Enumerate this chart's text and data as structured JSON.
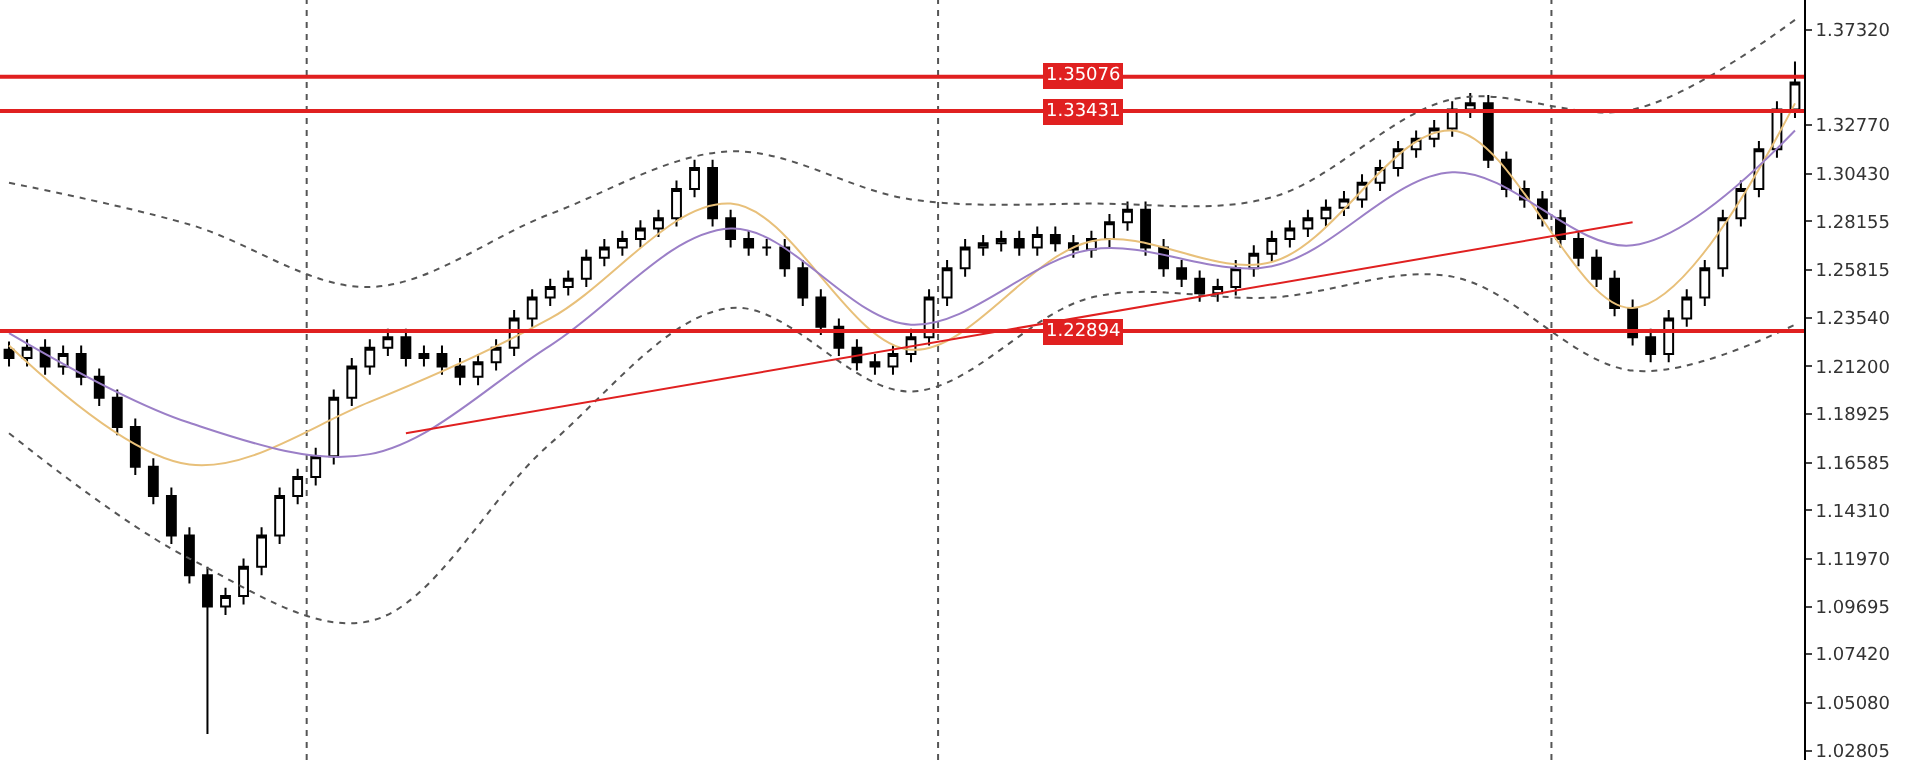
{
  "chart_data": {
    "type": "candlestick",
    "color": "#000000",
    "categories": [
      null,
      null,
      null,
      null,
      null,
      null,
      null,
      null,
      null,
      null,
      null,
      null,
      null,
      null,
      null,
      null,
      null,
      null,
      null,
      null,
      null,
      null,
      null,
      null,
      null,
      null,
      null,
      null,
      null,
      null,
      null,
      null,
      null,
      null,
      null,
      null,
      null,
      null,
      null,
      null,
      null,
      null,
      null,
      null,
      null,
      null,
      null,
      null,
      null,
      null,
      null,
      null,
      null,
      null,
      null,
      null,
      null,
      null,
      null,
      null,
      null,
      null,
      null,
      null,
      null,
      null,
      null,
      null,
      null,
      null,
      null,
      null,
      null,
      null,
      null,
      null,
      null,
      null,
      null,
      null,
      null,
      null,
      null,
      null,
      null,
      null,
      null,
      null,
      null,
      null,
      null,
      null,
      null,
      null,
      null,
      null,
      null,
      null,
      null,
      null
    ],
    "ohlc": [
      [
        1.22,
        1.224,
        1.212,
        1.216
      ],
      [
        1.216,
        1.225,
        1.212,
        1.221
      ],
      [
        1.221,
        1.225,
        1.208,
        1.212
      ],
      [
        1.212,
        1.222,
        1.208,
        1.218
      ],
      [
        1.218,
        1.222,
        1.203,
        1.207
      ],
      [
        1.207,
        1.211,
        1.193,
        1.197
      ],
      [
        1.197,
        1.201,
        1.179,
        1.183
      ],
      [
        1.183,
        1.187,
        1.16,
        1.164
      ],
      [
        1.164,
        1.168,
        1.146,
        1.15
      ],
      [
        1.15,
        1.154,
        1.127,
        1.131
      ],
      [
        1.131,
        1.135,
        1.108,
        1.112
      ],
      [
        1.112,
        1.116,
        1.036,
        1.097
      ],
      [
        1.097,
        1.106,
        1.093,
        1.102
      ],
      [
        1.102,
        1.12,
        1.098,
        1.116
      ],
      [
        1.116,
        1.135,
        1.112,
        1.131
      ],
      [
        1.131,
        1.154,
        1.127,
        1.15
      ],
      [
        1.15,
        1.163,
        1.146,
        1.159
      ],
      [
        1.159,
        1.173,
        1.155,
        1.169
      ],
      [
        1.169,
        1.201,
        1.165,
        1.197
      ],
      [
        1.197,
        1.216,
        1.193,
        1.212
      ],
      [
        1.212,
        1.225,
        1.208,
        1.221
      ],
      [
        1.221,
        1.23,
        1.217,
        1.226
      ],
      [
        1.226,
        1.23,
        1.212,
        1.216
      ],
      [
        1.216,
        1.222,
        1.212,
        1.218
      ],
      [
        1.218,
        1.222,
        1.208,
        1.212
      ],
      [
        1.212,
        1.216,
        1.203,
        1.207
      ],
      [
        1.207,
        1.218,
        1.203,
        1.214
      ],
      [
        1.214,
        1.225,
        1.21,
        1.221
      ],
      [
        1.221,
        1.239,
        1.217,
        1.235
      ],
      [
        1.235,
        1.249,
        1.231,
        1.245
      ],
      [
        1.245,
        1.254,
        1.241,
        1.25
      ],
      [
        1.25,
        1.258,
        1.246,
        1.254
      ],
      [
        1.254,
        1.268,
        1.25,
        1.264
      ],
      [
        1.264,
        1.273,
        1.26,
        1.269
      ],
      [
        1.269,
        1.277,
        1.265,
        1.273
      ],
      [
        1.273,
        1.282,
        1.269,
        1.278
      ],
      [
        1.278,
        1.287,
        1.274,
        1.283
      ],
      [
        1.283,
        1.301,
        1.279,
        1.297
      ],
      [
        1.297,
        1.311,
        1.293,
        1.307
      ],
      [
        1.307,
        1.311,
        1.279,
        1.283
      ],
      [
        1.283,
        1.287,
        1.269,
        1.273
      ],
      [
        1.273,
        1.277,
        1.265,
        1.269
      ],
      [
        1.269,
        1.273,
        1.265,
        1.269
      ],
      [
        1.269,
        1.273,
        1.255,
        1.259
      ],
      [
        1.259,
        1.263,
        1.241,
        1.245
      ],
      [
        1.245,
        1.249,
        1.227,
        1.231
      ],
      [
        1.231,
        1.235,
        1.217,
        1.221
      ],
      [
        1.221,
        1.225,
        1.21,
        1.214
      ],
      [
        1.214,
        1.218,
        1.208,
        1.212
      ],
      [
        1.212,
        1.222,
        1.208,
        1.218
      ],
      [
        1.218,
        1.23,
        1.214,
        1.226
      ],
      [
        1.226,
        1.249,
        1.222,
        1.245
      ],
      [
        1.245,
        1.263,
        1.241,
        1.259
      ],
      [
        1.259,
        1.273,
        1.255,
        1.269
      ],
      [
        1.269,
        1.275,
        1.265,
        1.271
      ],
      [
        1.271,
        1.277,
        1.267,
        1.273
      ],
      [
        1.273,
        1.277,
        1.265,
        1.269
      ],
      [
        1.269,
        1.279,
        1.265,
        1.275
      ],
      [
        1.275,
        1.279,
        1.267,
        1.271
      ],
      [
        1.271,
        1.275,
        1.264,
        1.268
      ],
      [
        1.268,
        1.277,
        1.264,
        1.273
      ],
      [
        1.273,
        1.285,
        1.269,
        1.281
      ],
      [
        1.281,
        1.291,
        1.277,
        1.287
      ],
      [
        1.287,
        1.291,
        1.265,
        1.269
      ],
      [
        1.269,
        1.273,
        1.255,
        1.259
      ],
      [
        1.259,
        1.263,
        1.25,
        1.254
      ],
      [
        1.254,
        1.258,
        1.243,
        1.247
      ],
      [
        1.247,
        1.254,
        1.243,
        1.25
      ],
      [
        1.25,
        1.263,
        1.246,
        1.259
      ],
      [
        1.259,
        1.27,
        1.255,
        1.266
      ],
      [
        1.266,
        1.277,
        1.262,
        1.273
      ],
      [
        1.273,
        1.282,
        1.269,
        1.278
      ],
      [
        1.278,
        1.287,
        1.274,
        1.283
      ],
      [
        1.283,
        1.292,
        1.279,
        1.288
      ],
      [
        1.288,
        1.296,
        1.284,
        1.292
      ],
      [
        1.292,
        1.304,
        1.288,
        1.3
      ],
      [
        1.3,
        1.311,
        1.296,
        1.307
      ],
      [
        1.307,
        1.32,
        1.303,
        1.316
      ],
      [
        1.316,
        1.325,
        1.312,
        1.321
      ],
      [
        1.321,
        1.33,
        1.317,
        1.326
      ],
      [
        1.326,
        1.339,
        1.322,
        1.335
      ],
      [
        1.335,
        1.343,
        1.331,
        1.338
      ],
      [
        1.338,
        1.342,
        1.307,
        1.311
      ],
      [
        1.311,
        1.315,
        1.293,
        1.297
      ],
      [
        1.297,
        1.301,
        1.288,
        1.292
      ],
      [
        1.292,
        1.296,
        1.279,
        1.283
      ],
      [
        1.283,
        1.287,
        1.269,
        1.273
      ],
      [
        1.273,
        1.277,
        1.26,
        1.264
      ],
      [
        1.264,
        1.268,
        1.25,
        1.254
      ],
      [
        1.254,
        1.258,
        1.236,
        1.24
      ],
      [
        1.24,
        1.244,
        1.222,
        1.226
      ],
      [
        1.226,
        1.23,
        1.214,
        1.218
      ],
      [
        1.218,
        1.239,
        1.214,
        1.235
      ],
      [
        1.235,
        1.249,
        1.231,
        1.245
      ],
      [
        1.245,
        1.263,
        1.241,
        1.259
      ],
      [
        1.259,
        1.287,
        1.255,
        1.283
      ],
      [
        1.283,
        1.301,
        1.279,
        1.297
      ],
      [
        1.297,
        1.32,
        1.293,
        1.316
      ],
      [
        1.316,
        1.339,
        1.312,
        1.335
      ],
      [
        1.335,
        1.358,
        1.331,
        1.348
      ]
    ],
    "series": [
      {
        "type": "line",
        "color": "#e8c07a",
        "line_style": "solid",
        "values": [
          1.222,
          null,
          null,
          null,
          null,
          null,
          null,
          null,
          null,
          null,
          1.165,
          null,
          null,
          null,
          null,
          null,
          null,
          null,
          null,
          null,
          1.195,
          null,
          null,
          null,
          null,
          null,
          null,
          null,
          null,
          null,
          1.235,
          null,
          null,
          null,
          null,
          null,
          null,
          null,
          null,
          null,
          1.29,
          null,
          null,
          null,
          null,
          null,
          null,
          null,
          null,
          null,
          1.22,
          null,
          null,
          null,
          null,
          null,
          null,
          null,
          null,
          null,
          1.272,
          null,
          null,
          null,
          null,
          null,
          null,
          null,
          null,
          null,
          1.262,
          null,
          null,
          null,
          null,
          null,
          null,
          null,
          null,
          null,
          1.325,
          null,
          null,
          null,
          null,
          null,
          null,
          null,
          null,
          null,
          1.24,
          null,
          null,
          null,
          null,
          null,
          null,
          null,
          null,
          1.338
        ]
      },
      {
        "type": "line",
        "color": "#9b7fc7",
        "line_style": "solid",
        "values": [
          1.228,
          null,
          null,
          null,
          null,
          null,
          null,
          null,
          null,
          null,
          1.185,
          null,
          null,
          null,
          null,
          null,
          null,
          null,
          null,
          null,
          1.17,
          null,
          null,
          null,
          null,
          null,
          null,
          null,
          null,
          null,
          1.222,
          null,
          null,
          null,
          null,
          null,
          null,
          null,
          null,
          null,
          1.278,
          null,
          null,
          null,
          null,
          null,
          null,
          null,
          null,
          null,
          1.232,
          null,
          null,
          null,
          null,
          null,
          null,
          null,
          null,
          null,
          1.268,
          null,
          null,
          null,
          null,
          null,
          null,
          null,
          null,
          null,
          1.26,
          null,
          null,
          null,
          null,
          null,
          null,
          null,
          null,
          null,
          1.305,
          null,
          null,
          null,
          null,
          null,
          null,
          null,
          null,
          null,
          1.27,
          null,
          null,
          null,
          null,
          null,
          null,
          null,
          null,
          1.325
        ]
      },
      {
        "type": "line",
        "color": "#555555",
        "line_style": "dotted",
        "values": [
          1.3,
          null,
          null,
          null,
          null,
          null,
          null,
          null,
          null,
          null,
          1.28,
          null,
          null,
          null,
          null,
          null,
          null,
          null,
          null,
          null,
          1.25,
          null,
          null,
          null,
          null,
          null,
          null,
          null,
          null,
          null,
          1.285,
          null,
          null,
          null,
          null,
          null,
          null,
          null,
          null,
          null,
          1.315,
          null,
          null,
          null,
          null,
          null,
          null,
          null,
          null,
          null,
          1.292,
          null,
          null,
          null,
          null,
          null,
          null,
          null,
          null,
          null,
          1.29,
          null,
          null,
          null,
          null,
          null,
          null,
          null,
          null,
          null,
          1.293,
          null,
          null,
          null,
          null,
          null,
          null,
          null,
          null,
          null,
          1.34,
          null,
          null,
          null,
          null,
          null,
          null,
          null,
          null,
          null,
          1.335,
          null,
          null,
          null,
          null,
          null,
          null,
          null,
          null,
          1.378
        ]
      },
      {
        "type": "line",
        "color": "#555555",
        "line_style": "dotted",
        "values": [
          1.18,
          null,
          null,
          null,
          null,
          null,
          null,
          null,
          null,
          null,
          1.12,
          null,
          null,
          null,
          null,
          null,
          null,
          null,
          null,
          null,
          1.09,
          null,
          null,
          null,
          null,
          null,
          null,
          null,
          null,
          null,
          1.175,
          null,
          null,
          null,
          null,
          null,
          null,
          null,
          null,
          null,
          1.24,
          null,
          null,
          null,
          null,
          null,
          null,
          null,
          null,
          null,
          1.2,
          null,
          null,
          null,
          null,
          null,
          null,
          null,
          null,
          null,
          1.245,
          null,
          null,
          null,
          null,
          null,
          null,
          null,
          null,
          null,
          1.245,
          null,
          null,
          null,
          null,
          null,
          null,
          null,
          null,
          null,
          1.255,
          null,
          null,
          null,
          null,
          null,
          null,
          null,
          null,
          null,
          1.21,
          null,
          null,
          null,
          null,
          null,
          null,
          null,
          null,
          1.232
        ]
      },
      {
        "type": "line",
        "color": "#e02020",
        "line_style": "solid",
        "values": [
          null,
          null,
          null,
          null,
          null,
          null,
          null,
          null,
          null,
          null,
          null,
          null,
          null,
          null,
          null,
          null,
          null,
          null,
          null,
          null,
          null,
          null,
          1.18,
          null,
          null,
          null,
          null,
          null,
          null,
          null,
          null,
          null,
          null,
          null,
          null,
          null,
          null,
          null,
          null,
          null,
          null,
          null,
          null,
          null,
          null,
          null,
          null,
          null,
          null,
          null,
          null,
          null,
          null,
          null,
          null,
          null,
          null,
          null,
          null,
          null,
          null,
          null,
          null,
          null,
          null,
          null,
          null,
          null,
          null,
          null,
          null,
          null,
          null,
          null,
          null,
          null,
          null,
          null,
          null,
          null,
          null,
          null,
          null,
          null,
          null,
          null,
          null,
          null,
          null,
          null,
          1.281,
          null,
          null,
          null,
          null,
          null,
          null,
          null,
          null,
          null
        ]
      }
    ],
    "ref_lines": [
      {
        "axis": "y",
        "value": 1.35076,
        "label": "1.35076",
        "color": "#e02020",
        "line_style": "solid"
      },
      {
        "axis": "y",
        "value": 1.33431,
        "label": "1.33431",
        "color": "#e02020",
        "line_style": "solid"
      },
      {
        "axis": "y",
        "value": 1.22894,
        "label": "1.22894",
        "color": "#e02020",
        "line_style": "solid"
      }
    ],
    "ylim": [
      1.0235,
      1.3875
    ],
    "yticks": [
      {
        "value": 1.3732,
        "label": "1.37320"
      },
      {
        "value": 1.3277,
        "label": "1.32770"
      },
      {
        "value": 1.3043,
        "label": "1.30430"
      },
      {
        "value": 1.28155,
        "label": "1.28155"
      },
      {
        "value": 1.25815,
        "label": "1.25815"
      },
      {
        "value": 1.2354,
        "label": "1.23540"
      },
      {
        "value": 1.212,
        "label": "1.21200"
      },
      {
        "value": 1.18925,
        "label": "1.18925"
      },
      {
        "value": 1.16585,
        "label": "1.16585"
      },
      {
        "value": 1.1431,
        "label": "1.14310"
      },
      {
        "value": 1.1197,
        "label": "1.11970"
      },
      {
        "value": 1.09695,
        "label": "1.09695"
      },
      {
        "value": 1.0742,
        "label": "1.07420"
      },
      {
        "value": 1.0508,
        "label": "1.05080"
      },
      {
        "value": 1.02805,
        "label": "1.02805"
      }
    ],
    "tick_labels": "y"
  }
}
